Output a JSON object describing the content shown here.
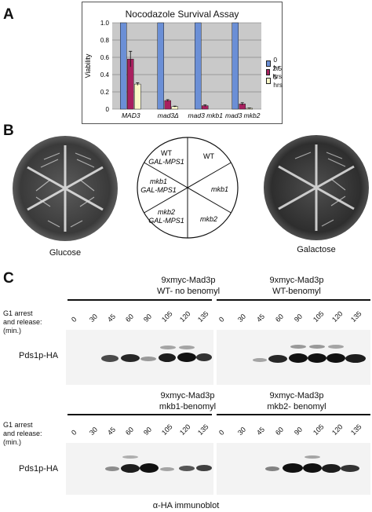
{
  "panels": {
    "a": "A",
    "b": "B",
    "c": "C"
  },
  "chart_data": {
    "type": "bar",
    "title": "Nocodazole Survival Assay",
    "ylabel": "Viability",
    "xlabel": "",
    "ylim": [
      0,
      1.0
    ],
    "yticks": [
      "0",
      "0.2",
      "0.4",
      "0.6",
      "0.8",
      "1.0"
    ],
    "categories": [
      "MAD3",
      "mad3Δ",
      "mad3 mkb1",
      "mad3 mkb2"
    ],
    "series": [
      {
        "name": "0 hr",
        "color": "#6b8fd6",
        "values": [
          1.0,
          1.0,
          1.0,
          1.0
        ]
      },
      {
        "name": "2.5 hrs",
        "color": "#a8205f",
        "values": [
          0.58,
          0.1,
          0.04,
          0.06
        ]
      },
      {
        "name": "5 hrs",
        "color": "#fbf8c8",
        "values": [
          0.29,
          0.03,
          0.0,
          0.01
        ]
      }
    ],
    "errors": [
      [
        0,
        0,
        0,
        0
      ],
      [
        0.09,
        0.01,
        0.01,
        0.015
      ],
      [
        0.015,
        0.005,
        0,
        0.003
      ]
    ],
    "grid": true,
    "legend": "right"
  },
  "plates": {
    "left_caption": "Glucose",
    "right_caption": "Galactose",
    "diagram": {
      "sector1_line1": "WT",
      "sector1_line2": "GAL-MPS1",
      "sector2": "WT",
      "sector3_line1": "mkb1",
      "sector3_line2": "GAL-MPS1",
      "sector4": "mkb1",
      "sector5_line1": "mkb2",
      "sector5_line2": "GAL-MPS1",
      "sector6": "mkb2"
    }
  },
  "blots": {
    "row_label_line1": "G1 arrest",
    "row_label_line2": "and release:",
    "row_label_line3": "(min.)",
    "band_label": "Pds1p-HA",
    "lanes": [
      "0",
      "30",
      "45",
      "60",
      "90",
      "105",
      "120",
      "135"
    ],
    "titles": [
      {
        "line1": "9xmyc-Mad3p",
        "line2": "WT- no benomyl"
      },
      {
        "line1": "9xmyc-Mad3p",
        "line2": "WT-benomyl"
      },
      {
        "line1": "9xmyc-Mad3p",
        "line2": "mkb1-benomyl"
      },
      {
        "line1": "9xmyc-Mad3p",
        "line2": "mkb2- benomyl"
      }
    ],
    "footer": "α-HA immunoblot"
  }
}
